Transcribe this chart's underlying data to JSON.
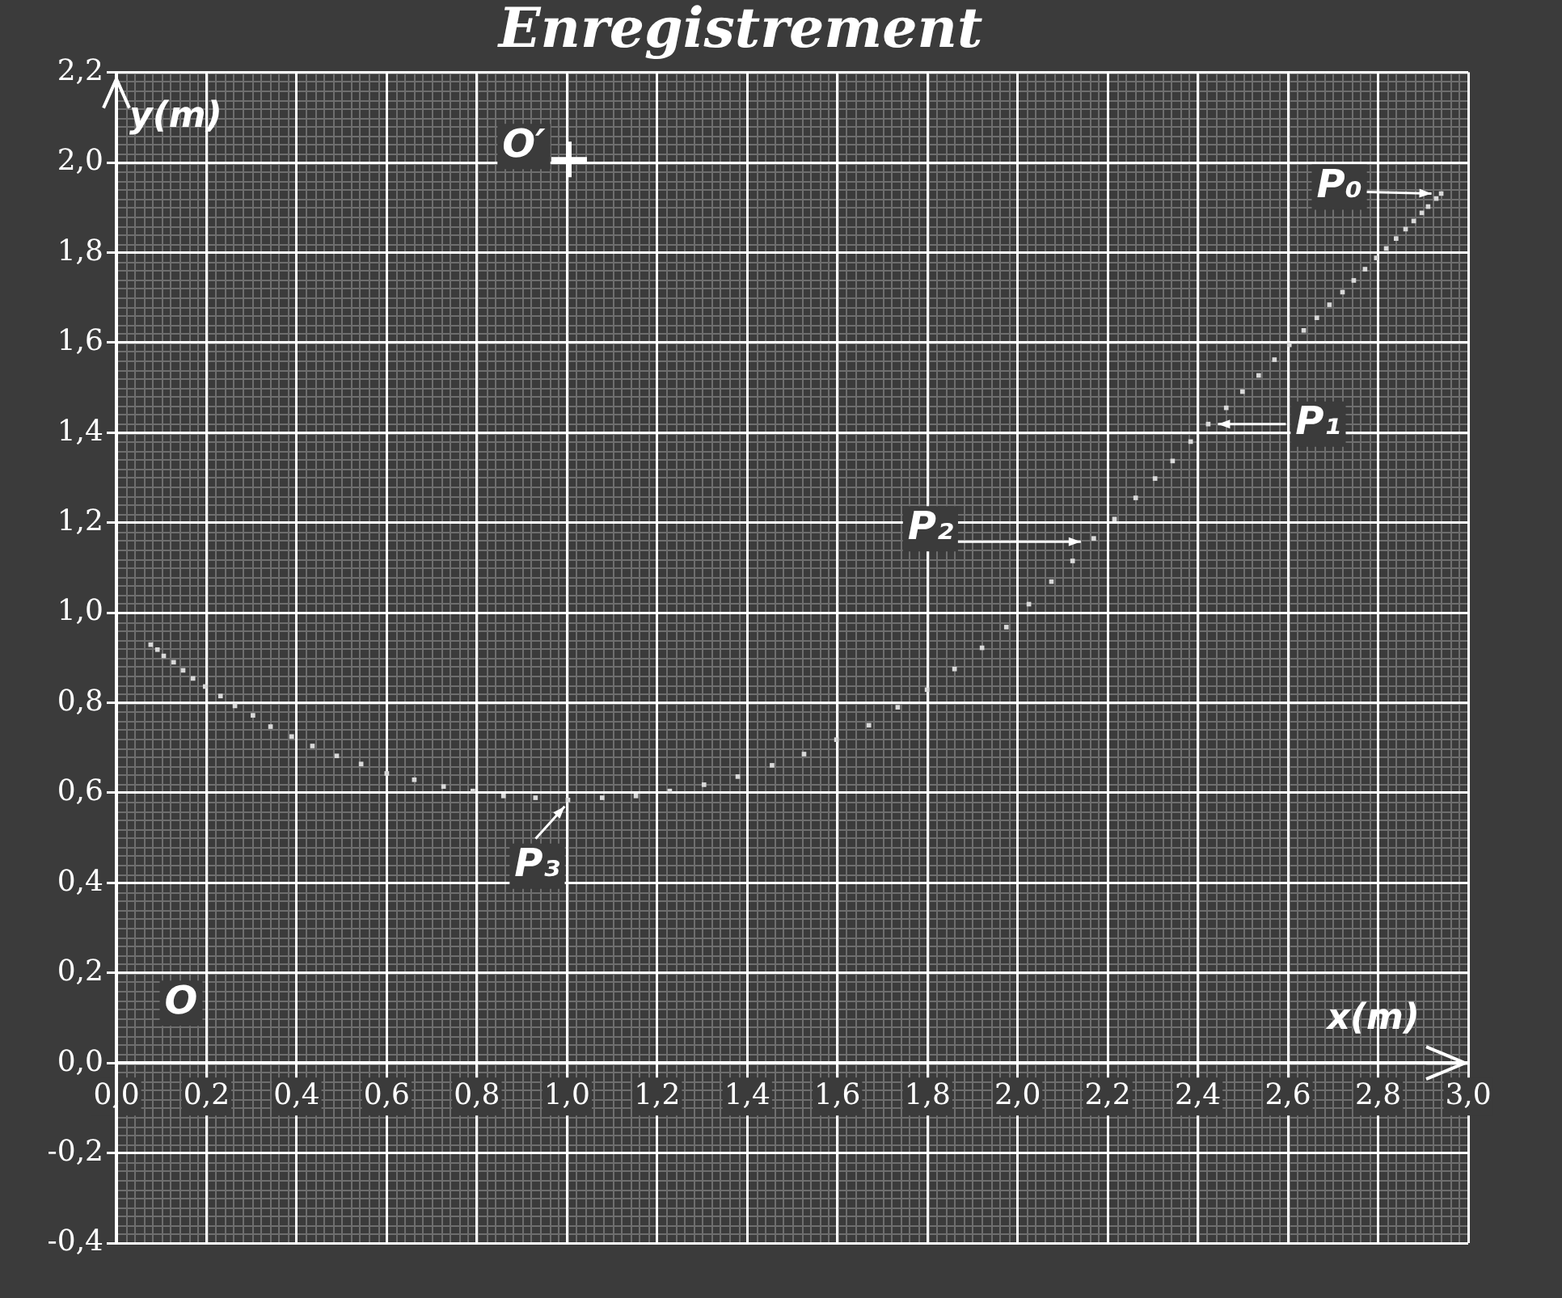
{
  "chart_data": {
    "type": "scatter",
    "title": "Enregistrement",
    "xlabel": "x(m)",
    "ylabel": "y(m)",
    "x": [
      0.076,
      0.091,
      0.105,
      0.127,
      0.148,
      0.17,
      0.197,
      0.231,
      0.263,
      0.303,
      0.342,
      0.389,
      0.435,
      0.489,
      0.543,
      0.6,
      0.661,
      0.726,
      0.791,
      0.859,
      0.93,
      1.002,
      1.078,
      1.153,
      1.228,
      1.304,
      1.379,
      1.455,
      1.526,
      1.598,
      1.67,
      1.734,
      1.799,
      1.86,
      1.921,
      1.975,
      2.025,
      2.075,
      2.122,
      2.169,
      2.215,
      2.262,
      2.305,
      2.344,
      2.384,
      2.423,
      2.463,
      2.499,
      2.535,
      2.57,
      2.603,
      2.635,
      2.664,
      2.692,
      2.721,
      2.746,
      2.771,
      2.796,
      2.818,
      2.84,
      2.861,
      2.879,
      2.897,
      2.911,
      2.929,
      2.94
    ],
    "series": [
      {
        "color": "#d9d9d9",
        "values": [
          0.929,
          0.918,
          0.904,
          0.89,
          0.872,
          0.854,
          0.836,
          0.815,
          0.793,
          0.772,
          0.747,
          0.725,
          0.704,
          0.682,
          0.664,
          0.643,
          0.629,
          0.614,
          0.604,
          0.593,
          0.589,
          0.584,
          0.589,
          0.593,
          0.604,
          0.618,
          0.636,
          0.661,
          0.686,
          0.718,
          0.75,
          0.79,
          0.829,
          0.875,
          0.922,
          0.968,
          1.019,
          1.069,
          1.115,
          1.165,
          1.208,
          1.255,
          1.298,
          1.337,
          1.38,
          1.419,
          1.455,
          1.491,
          1.527,
          1.562,
          1.595,
          1.627,
          1.655,
          1.684,
          1.712,
          1.738,
          1.763,
          1.788,
          1.809,
          1.831,
          1.852,
          1.87,
          1.888,
          1.902,
          1.92,
          1.931
        ]
      }
    ],
    "xlim": [
      0,
      3.0
    ],
    "xticks": [
      {
        "value": 0,
        "label": "0,0"
      },
      {
        "value": 0.2,
        "label": "0,2"
      },
      {
        "value": 0.4,
        "label": "0,4"
      },
      {
        "value": 0.6,
        "label": "0,6"
      },
      {
        "value": 0.8,
        "label": "0,8"
      },
      {
        "value": 1.0,
        "label": "1,0"
      },
      {
        "value": 1.2,
        "label": "1,2"
      },
      {
        "value": 1.4,
        "label": "1,4"
      },
      {
        "value": 1.6,
        "label": "1,6"
      },
      {
        "value": 1.8,
        "label": "1,8"
      },
      {
        "value": 2.0,
        "label": "2,0"
      },
      {
        "value": 2.2,
        "label": "2,2"
      },
      {
        "value": 2.4,
        "label": "2,4"
      },
      {
        "value": 2.6,
        "label": "2,6"
      },
      {
        "value": 2.8,
        "label": "2,8"
      },
      {
        "value": 3.0,
        "label": "3,0"
      }
    ],
    "ylim": [
      -0.4,
      2.2
    ],
    "yticks": [
      {
        "value": -0.4,
        "label": "-0,4"
      },
      {
        "value": -0.2,
        "label": "-0,2"
      },
      {
        "value": 0,
        "label": "0,0"
      },
      {
        "value": 0.2,
        "label": "0,2"
      },
      {
        "value": 0.4,
        "label": "0,4"
      },
      {
        "value": 0.6,
        "label": "0,6"
      },
      {
        "value": 0.8,
        "label": "0,8"
      },
      {
        "value": 1.0,
        "label": "1,0"
      },
      {
        "value": 1.2,
        "label": "1,2"
      },
      {
        "value": 1.4,
        "label": "1,4"
      },
      {
        "value": 1.6,
        "label": "1,6"
      },
      {
        "value": 1.8,
        "label": "1,8"
      },
      {
        "value": 2.0,
        "label": "2,0"
      },
      {
        "value": 2.2,
        "label": "2,2"
      }
    ],
    "grid": true,
    "marker": "square",
    "annotations": [
      {
        "text": "P₀",
        "x": 2.94,
        "y": 1.931
      },
      {
        "text": "P₁",
        "x": 2.423,
        "y": 1.419
      },
      {
        "text": "P₂",
        "x": 2.169,
        "y": 1.165
      },
      {
        "text": "P₃",
        "x": 1.002,
        "y": 0.584
      },
      "O′",
      "O"
    ]
  }
}
